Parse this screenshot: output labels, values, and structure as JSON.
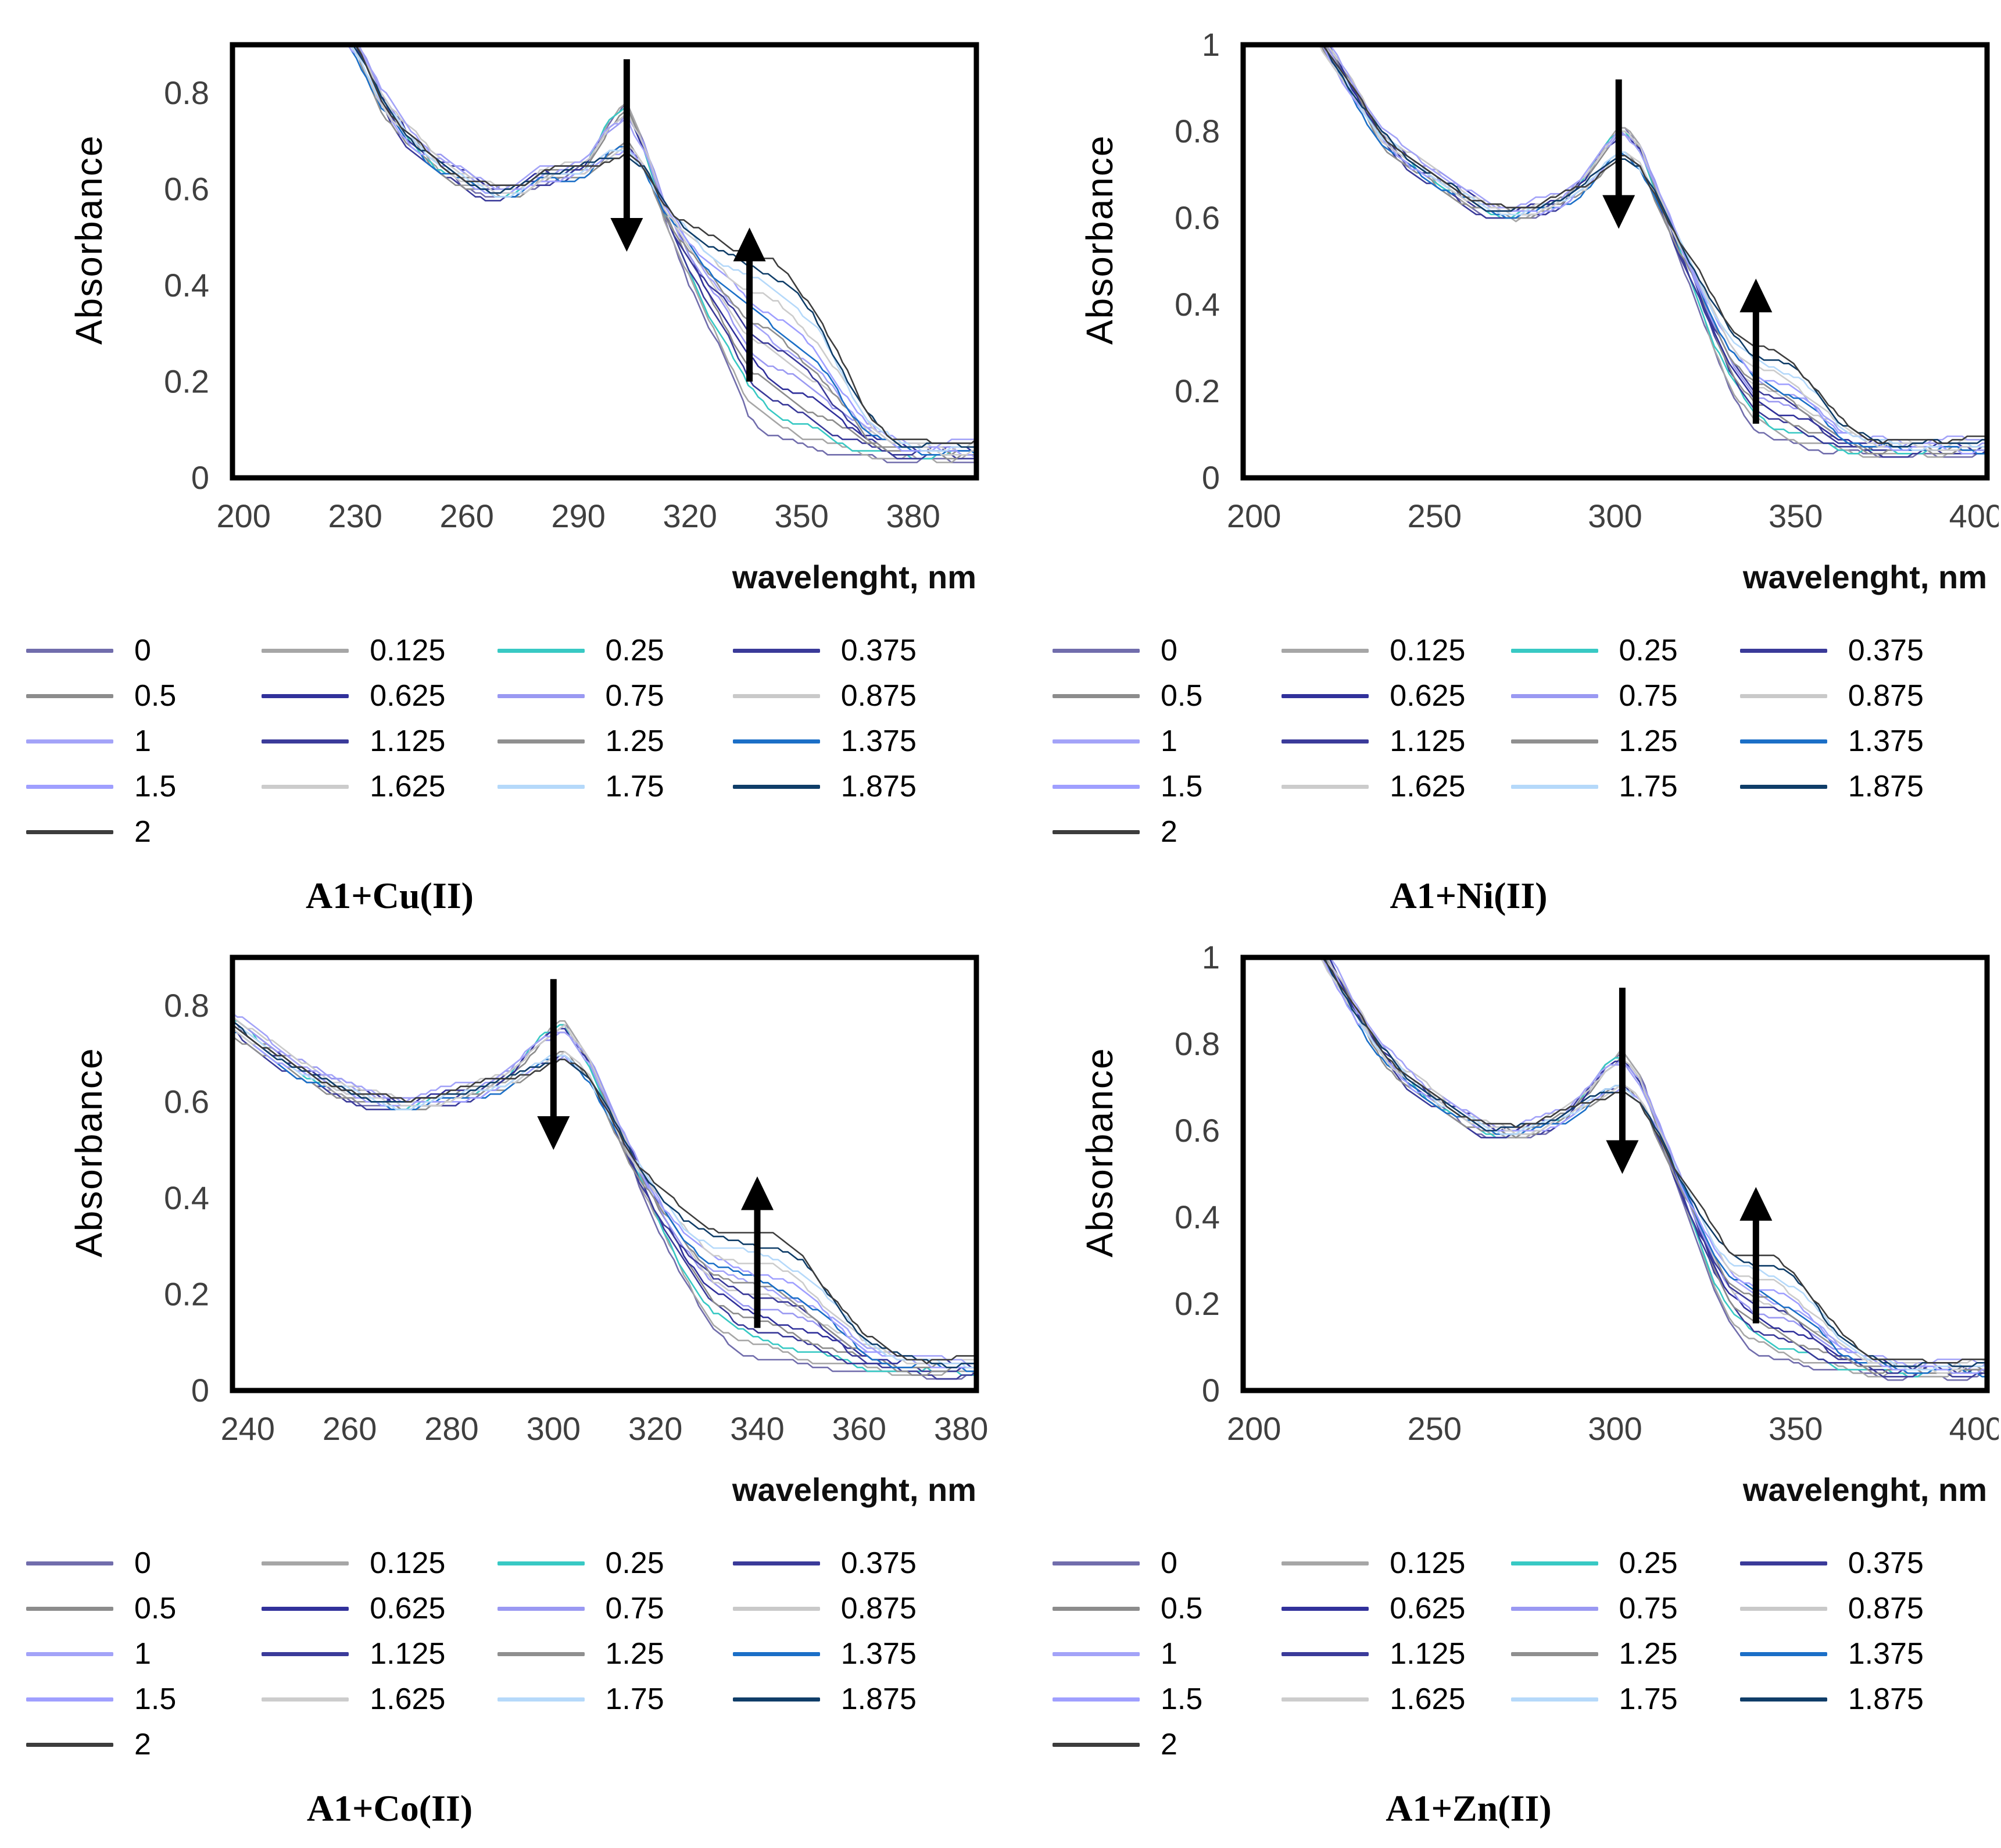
{
  "legend": {
    "values": [
      "0",
      "0.125",
      "0.25",
      "0.375",
      "0.5",
      "0.625",
      "0.75",
      "0.875",
      "1",
      "1.125",
      "1.25",
      "1.375",
      "1.5",
      "1.625",
      "1.75",
      "1.875",
      "2"
    ],
    "equivalents": [
      0,
      0.125,
      0.25,
      0.375,
      0.5,
      0.625,
      0.75,
      0.875,
      1,
      1.125,
      1.25,
      1.375,
      1.5,
      1.625,
      1.75,
      1.875,
      2
    ],
    "colors": [
      "#716dac",
      "#a6a6a6",
      "#38c9c4",
      "#3a3a99",
      "#8c8c8c",
      "#31319b",
      "#9a99f2",
      "#c9c9c9",
      "#a3a3f8",
      "#3b3b9a",
      "#8f8f8f",
      "#1b6fc7",
      "#9f9fff",
      "#cccccc",
      "#b5d9fa",
      "#0f3d68",
      "#3d3d3d"
    ]
  },
  "chart_data": [
    {
      "type": "line",
      "title": "A1+Cu(II)",
      "xlabel": "wavelenght, nm",
      "ylabel": "Absorbance",
      "xlim": [
        197,
        397
      ],
      "ylim": [
        0,
        0.9
      ],
      "xticks": [
        "200",
        "230",
        "260",
        "290",
        "320",
        "350",
        "380"
      ],
      "xtick_values": [
        200,
        230,
        260,
        290,
        320,
        350,
        380
      ],
      "yticks": [
        "0",
        "0.2",
        "0.4",
        "0.6",
        "0.8"
      ],
      "ytick_values": [
        0,
        0.2,
        0.4,
        0.6,
        0.8
      ],
      "x_anchors": [
        197,
        210,
        222,
        230,
        237,
        244,
        252,
        260,
        268,
        274,
        280,
        286,
        292,
        298,
        303,
        308,
        313,
        318,
        324,
        330,
        336,
        342,
        348,
        354,
        360,
        367,
        375,
        385,
        397
      ],
      "y_initial": [
        1.15,
        1.08,
        1.0,
        0.92,
        0.8,
        0.72,
        0.66,
        0.625,
        0.6,
        0.605,
        0.635,
        0.64,
        0.66,
        0.755,
        0.8,
        0.7,
        0.56,
        0.46,
        0.35,
        0.255,
        0.15,
        0.105,
        0.085,
        0.075,
        0.065,
        0.06,
        0.055,
        0.055,
        0.055
      ],
      "y_final": [
        1.08,
        1.02,
        0.95,
        0.88,
        0.77,
        0.7,
        0.645,
        0.61,
        0.585,
        0.59,
        0.62,
        0.625,
        0.63,
        0.645,
        0.655,
        0.625,
        0.56,
        0.525,
        0.49,
        0.465,
        0.45,
        0.43,
        0.39,
        0.33,
        0.24,
        0.13,
        0.07,
        0.057,
        0.055
      ],
      "arrows": [
        {
          "x": 303,
          "y_tail": 0.87,
          "y_head": 0.47,
          "dir": "down"
        },
        {
          "x": 336,
          "y_tail": 0.2,
          "y_head": 0.52,
          "dir": "up"
        }
      ]
    },
    {
      "type": "line",
      "title": "A1+Ni(II)",
      "xlabel": "wavelenght, nm",
      "ylabel": "Absorbance",
      "xlim": [
        197,
        403
      ],
      "ylim": [
        0,
        1.0
      ],
      "xticks": [
        "200",
        "250",
        "300",
        "350",
        "400"
      ],
      "xtick_values": [
        200,
        250,
        300,
        350,
        400
      ],
      "yticks": [
        "0",
        "0.2",
        "0.4",
        "0.6",
        "0.8",
        "1"
      ],
      "ytick_values": [
        0,
        0.2,
        0.4,
        0.6,
        0.8,
        1
      ],
      "x_anchors": [
        197,
        205,
        213,
        221,
        228,
        235,
        242,
        250,
        258,
        265,
        272,
        279,
        286,
        292,
        297,
        302,
        307,
        312,
        317,
        322,
        327,
        332,
        338,
        344,
        350,
        356,
        362,
        370,
        380,
        403
      ],
      "y_initial": [
        1.3,
        1.22,
        1.12,
        1.0,
        0.9,
        0.8,
        0.745,
        0.7,
        0.655,
        0.625,
        0.615,
        0.63,
        0.65,
        0.71,
        0.78,
        0.83,
        0.78,
        0.66,
        0.55,
        0.44,
        0.32,
        0.22,
        0.14,
        0.105,
        0.09,
        0.08,
        0.075,
        0.07,
        0.07,
        0.07
      ],
      "y_final": [
        1.22,
        1.15,
        1.06,
        0.96,
        0.87,
        0.78,
        0.73,
        0.685,
        0.645,
        0.615,
        0.605,
        0.615,
        0.635,
        0.66,
        0.7,
        0.73,
        0.7,
        0.63,
        0.55,
        0.48,
        0.4,
        0.33,
        0.285,
        0.27,
        0.245,
        0.19,
        0.12,
        0.08,
        0.07,
        0.07
      ],
      "arrows": [
        {
          "x": 301,
          "y_tail": 0.92,
          "y_head": 0.575,
          "dir": "down"
        },
        {
          "x": 339,
          "y_tail": 0.125,
          "y_head": 0.46,
          "dir": "up"
        }
      ]
    },
    {
      "type": "line",
      "title": "A1+Co(II)",
      "xlabel": "wavelenght, nm",
      "ylabel": "Absorbance",
      "xlim": [
        237,
        383
      ],
      "ylim": [
        0,
        0.9
      ],
      "xticks": [
        "240",
        "260",
        "280",
        "300",
        "320",
        "340",
        "360",
        "380"
      ],
      "xtick_values": [
        240,
        260,
        280,
        300,
        320,
        340,
        360,
        380
      ],
      "yticks": [
        "0",
        "0.2",
        "0.4",
        "0.6",
        "0.8"
      ],
      "ytick_values": [
        0,
        0.2,
        0.4,
        0.6,
        0.8
      ],
      "x_anchors": [
        237,
        243,
        250,
        257,
        264,
        271,
        278,
        285,
        291,
        297,
        302,
        307,
        312,
        316,
        321,
        326,
        331,
        337,
        343,
        349,
        355,
        361,
        368,
        376,
        383
      ],
      "y_initial": [
        0.78,
        0.73,
        0.68,
        0.64,
        0.615,
        0.6,
        0.615,
        0.63,
        0.66,
        0.745,
        0.785,
        0.7,
        0.57,
        0.47,
        0.35,
        0.24,
        0.15,
        0.1,
        0.08,
        0.065,
        0.06,
        0.055,
        0.05,
        0.05,
        0.05
      ],
      "y_final": [
        0.745,
        0.7,
        0.655,
        0.625,
        0.6,
        0.585,
        0.6,
        0.615,
        0.63,
        0.655,
        0.675,
        0.635,
        0.545,
        0.47,
        0.405,
        0.35,
        0.32,
        0.31,
        0.3,
        0.26,
        0.18,
        0.1,
        0.06,
        0.05,
        0.05
      ],
      "arrows": [
        {
          "x": 300,
          "y_tail": 0.855,
          "y_head": 0.5,
          "dir": "down"
        },
        {
          "x": 340,
          "y_tail": 0.13,
          "y_head": 0.445,
          "dir": "up"
        }
      ]
    },
    {
      "type": "line",
      "title": "A1+Zn(II)",
      "xlabel": "wavelenght, nm",
      "ylabel": "Absorbance",
      "xlim": [
        197,
        403
      ],
      "ylim": [
        0,
        1.0
      ],
      "xticks": [
        "200",
        "250",
        "300",
        "350",
        "400"
      ],
      "xtick_values": [
        200,
        250,
        300,
        350,
        400
      ],
      "yticks": [
        "0",
        "0.2",
        "0.4",
        "0.6",
        "0.8",
        "1"
      ],
      "ytick_values": [
        0,
        0.2,
        0.4,
        0.6,
        0.8,
        1
      ],
      "x_anchors": [
        197,
        205,
        213,
        221,
        228,
        235,
        242,
        250,
        258,
        265,
        272,
        279,
        286,
        292,
        297,
        302,
        307,
        312,
        317,
        322,
        327,
        332,
        338,
        344,
        350,
        356,
        362,
        370,
        380,
        403
      ],
      "y_initial": [
        1.35,
        1.25,
        1.13,
        1.0,
        0.89,
        0.795,
        0.73,
        0.68,
        0.635,
        0.605,
        0.6,
        0.615,
        0.64,
        0.7,
        0.765,
        0.8,
        0.74,
        0.62,
        0.5,
        0.38,
        0.26,
        0.17,
        0.115,
        0.09,
        0.075,
        0.065,
        0.06,
        0.055,
        0.05,
        0.05
      ],
      "y_final": [
        1.28,
        1.18,
        1.07,
        0.96,
        0.86,
        0.775,
        0.715,
        0.665,
        0.625,
        0.6,
        0.595,
        0.605,
        0.625,
        0.65,
        0.665,
        0.675,
        0.645,
        0.58,
        0.5,
        0.43,
        0.36,
        0.305,
        0.295,
        0.285,
        0.25,
        0.19,
        0.12,
        0.07,
        0.05,
        0.05
      ],
      "arrows": [
        {
          "x": 302,
          "y_tail": 0.93,
          "y_head": 0.5,
          "dir": "down"
        },
        {
          "x": 339,
          "y_tail": 0.155,
          "y_head": 0.47,
          "dir": "up"
        }
      ]
    }
  ]
}
